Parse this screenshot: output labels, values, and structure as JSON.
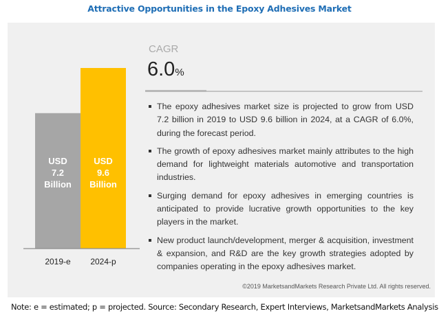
{
  "title": "Attractive Opportunities in the Epoxy Adhesives Market",
  "cagr": {
    "label": "CAGR",
    "value": "6.0",
    "unit": "%"
  },
  "bullets": [
    "The epoxy adhesives market size is projected to grow from USD 7.2 billion in 2019 to USD 9.6 billion in 2024, at a CAGR of 6.0%, during the forecast period.",
    "The growth of epoxy adhesives market mainly attributes to the high demand for lightweight materials automotive and transportation industries.",
    "Surging demand for epoxy adhesives in emerging countries is anticipated to provide lucrative growth opportunities to the key players in the market.",
    "New product launch/development, merger & acquisition, investment & expansion, and R&D are the key growth strategies adopted by companies operating in the epoxy adhesives market."
  ],
  "copyright": "©2019 MarketsandMarkets  Research Private Ltd. All rights reserved.",
  "note": "Note: e = estimated; p = projected. Source: Secondary Research, Expert Interviews, MarketsandMarkets Analysis",
  "colors": {
    "title": "#1f6eb5",
    "bar_2019": "#a6a6a6",
    "bar_2024": "#ffc000",
    "panel": "#f0f0f0"
  },
  "chart_data": {
    "type": "bar",
    "title": "Attractive Opportunities in the Epoxy Adhesives Market",
    "categories": [
      "2019-e",
      "2024-p"
    ],
    "values": [
      7.2,
      9.6
    ],
    "unit": "USD Billion",
    "data_labels": [
      [
        "USD",
        "7.2",
        "Billion"
      ],
      [
        "USD",
        "9.6",
        "Billion"
      ]
    ],
    "bar_colors": [
      "#a6a6a6",
      "#ffc000"
    ],
    "xlabel": "",
    "ylabel": "",
    "ylim": [
      0,
      9.6
    ],
    "grid": false,
    "legend": "none"
  }
}
